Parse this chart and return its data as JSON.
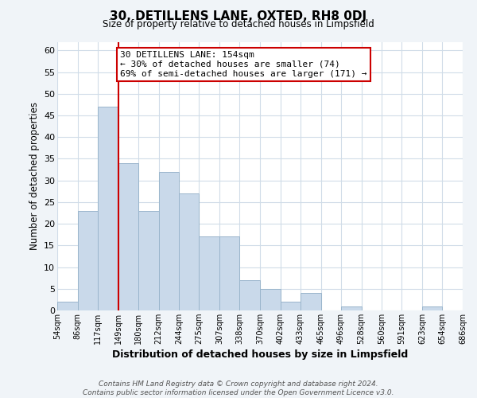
{
  "title": "30, DETILLENS LANE, OXTED, RH8 0DJ",
  "subtitle": "Size of property relative to detached houses in Limpsfield",
  "xlabel": "Distribution of detached houses by size in Limpsfield",
  "ylabel": "Number of detached properties",
  "bar_color": "#c9d9ea",
  "bar_edge_color": "#9ab5cc",
  "background_color": "#ffffff",
  "fig_background_color": "#f0f4f8",
  "grid_color": "#d0dce8",
  "annotation_line_color": "#cc0000",
  "annotation_box_text": "30 DETILLENS LANE: 154sqm\n← 30% of detached houses are smaller (74)\n69% of semi-detached houses are larger (171) →",
  "annotation_box_color": "#ffffff",
  "annotation_box_edge_color": "#cc0000",
  "bin_edges": [
    54,
    86,
    117,
    149,
    180,
    212,
    244,
    275,
    307,
    338,
    370,
    402,
    433,
    465,
    496,
    528,
    560,
    591,
    623,
    654,
    686
  ],
  "bin_heights": [
    2,
    23,
    47,
    34,
    23,
    32,
    27,
    17,
    17,
    7,
    5,
    2,
    4,
    0,
    1,
    0,
    0,
    0,
    1,
    0
  ],
  "ylim": [
    0,
    62
  ],
  "yticks": [
    0,
    5,
    10,
    15,
    20,
    25,
    30,
    35,
    40,
    45,
    50,
    55,
    60
  ],
  "footer_text": "Contains HM Land Registry data © Crown copyright and database right 2024.\nContains public sector information licensed under the Open Government Licence v3.0.",
  "tick_labels": [
    "54sqm",
    "86sqm",
    "117sqm",
    "149sqm",
    "180sqm",
    "212sqm",
    "244sqm",
    "275sqm",
    "307sqm",
    "338sqm",
    "370sqm",
    "402sqm",
    "433sqm",
    "465sqm",
    "496sqm",
    "528sqm",
    "560sqm",
    "591sqm",
    "623sqm",
    "654sqm",
    "686sqm"
  ]
}
